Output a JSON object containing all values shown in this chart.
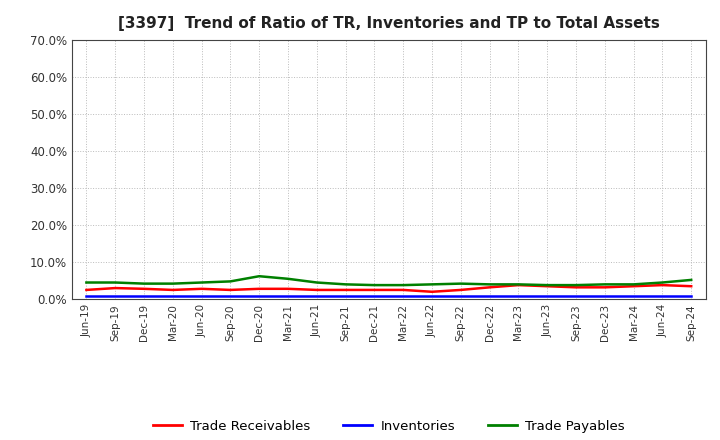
{
  "title": "[3397]  Trend of Ratio of TR, Inventories and TP to Total Assets",
  "xlabels": [
    "Jun-19",
    "Sep-19",
    "Dec-19",
    "Mar-20",
    "Jun-20",
    "Sep-20",
    "Dec-20",
    "Mar-21",
    "Jun-21",
    "Sep-21",
    "Dec-21",
    "Mar-22",
    "Jun-22",
    "Sep-22",
    "Dec-22",
    "Mar-23",
    "Jun-23",
    "Sep-23",
    "Dec-23",
    "Mar-24",
    "Jun-24",
    "Sep-24"
  ],
  "trade_receivables": [
    2.5,
    3.0,
    2.8,
    2.5,
    2.8,
    2.5,
    2.8,
    2.8,
    2.5,
    2.5,
    2.5,
    2.5,
    2.0,
    2.5,
    3.2,
    3.8,
    3.5,
    3.2,
    3.2,
    3.5,
    3.8,
    3.5
  ],
  "inventories": [
    0.8,
    0.8,
    0.8,
    0.8,
    0.8,
    0.8,
    0.8,
    0.8,
    0.8,
    0.8,
    0.8,
    0.8,
    0.8,
    0.8,
    0.8,
    0.8,
    0.8,
    0.8,
    0.8,
    0.8,
    0.8,
    0.8
  ],
  "trade_payables": [
    4.5,
    4.5,
    4.2,
    4.2,
    4.5,
    4.8,
    6.2,
    5.5,
    4.5,
    4.0,
    3.8,
    3.8,
    4.0,
    4.2,
    4.0,
    4.0,
    3.8,
    3.8,
    4.0,
    4.0,
    4.5,
    5.2
  ],
  "ylim": [
    0,
    70
  ],
  "yticks": [
    0,
    10,
    20,
    30,
    40,
    50,
    60,
    70
  ],
  "color_tr": "#ff0000",
  "color_inv": "#0000ff",
  "color_tp": "#008000",
  "bg_color": "#ffffff",
  "plot_bg_color": "#ffffff",
  "grid_color": "#bbbbbb",
  "legend_labels": [
    "Trade Receivables",
    "Inventories",
    "Trade Payables"
  ]
}
